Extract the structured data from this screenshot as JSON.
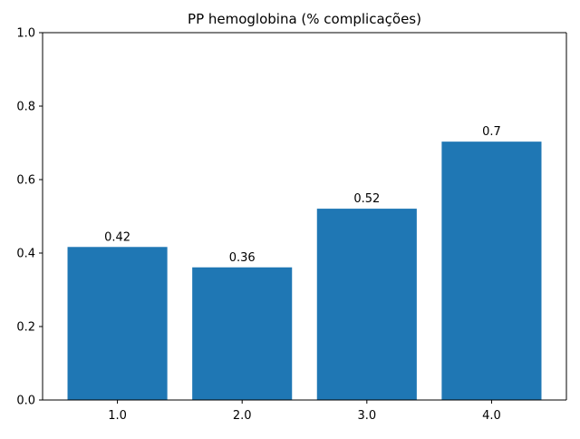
{
  "chart_data": {
    "type": "bar",
    "title": "PP hemoglobina (% complicações)",
    "xlabel": "",
    "ylabel": "",
    "categories": [
      "1.0",
      "2.0",
      "3.0",
      "4.0"
    ],
    "values": [
      0.4166,
      0.3611,
      0.5208,
      0.7033
    ],
    "value_labels": [
      "0.42",
      "0.36",
      "0.52",
      "0.7"
    ],
    "ylim": [
      0,
      1
    ],
    "yticks": [
      0.0,
      0.2,
      0.4,
      0.6,
      0.8,
      1.0
    ],
    "ytick_labels": [
      "0.0",
      "0.2",
      "0.4",
      "0.6",
      "0.8",
      "1.0"
    ],
    "grid": false,
    "colors": {
      "bar": "#1f77b4"
    }
  }
}
